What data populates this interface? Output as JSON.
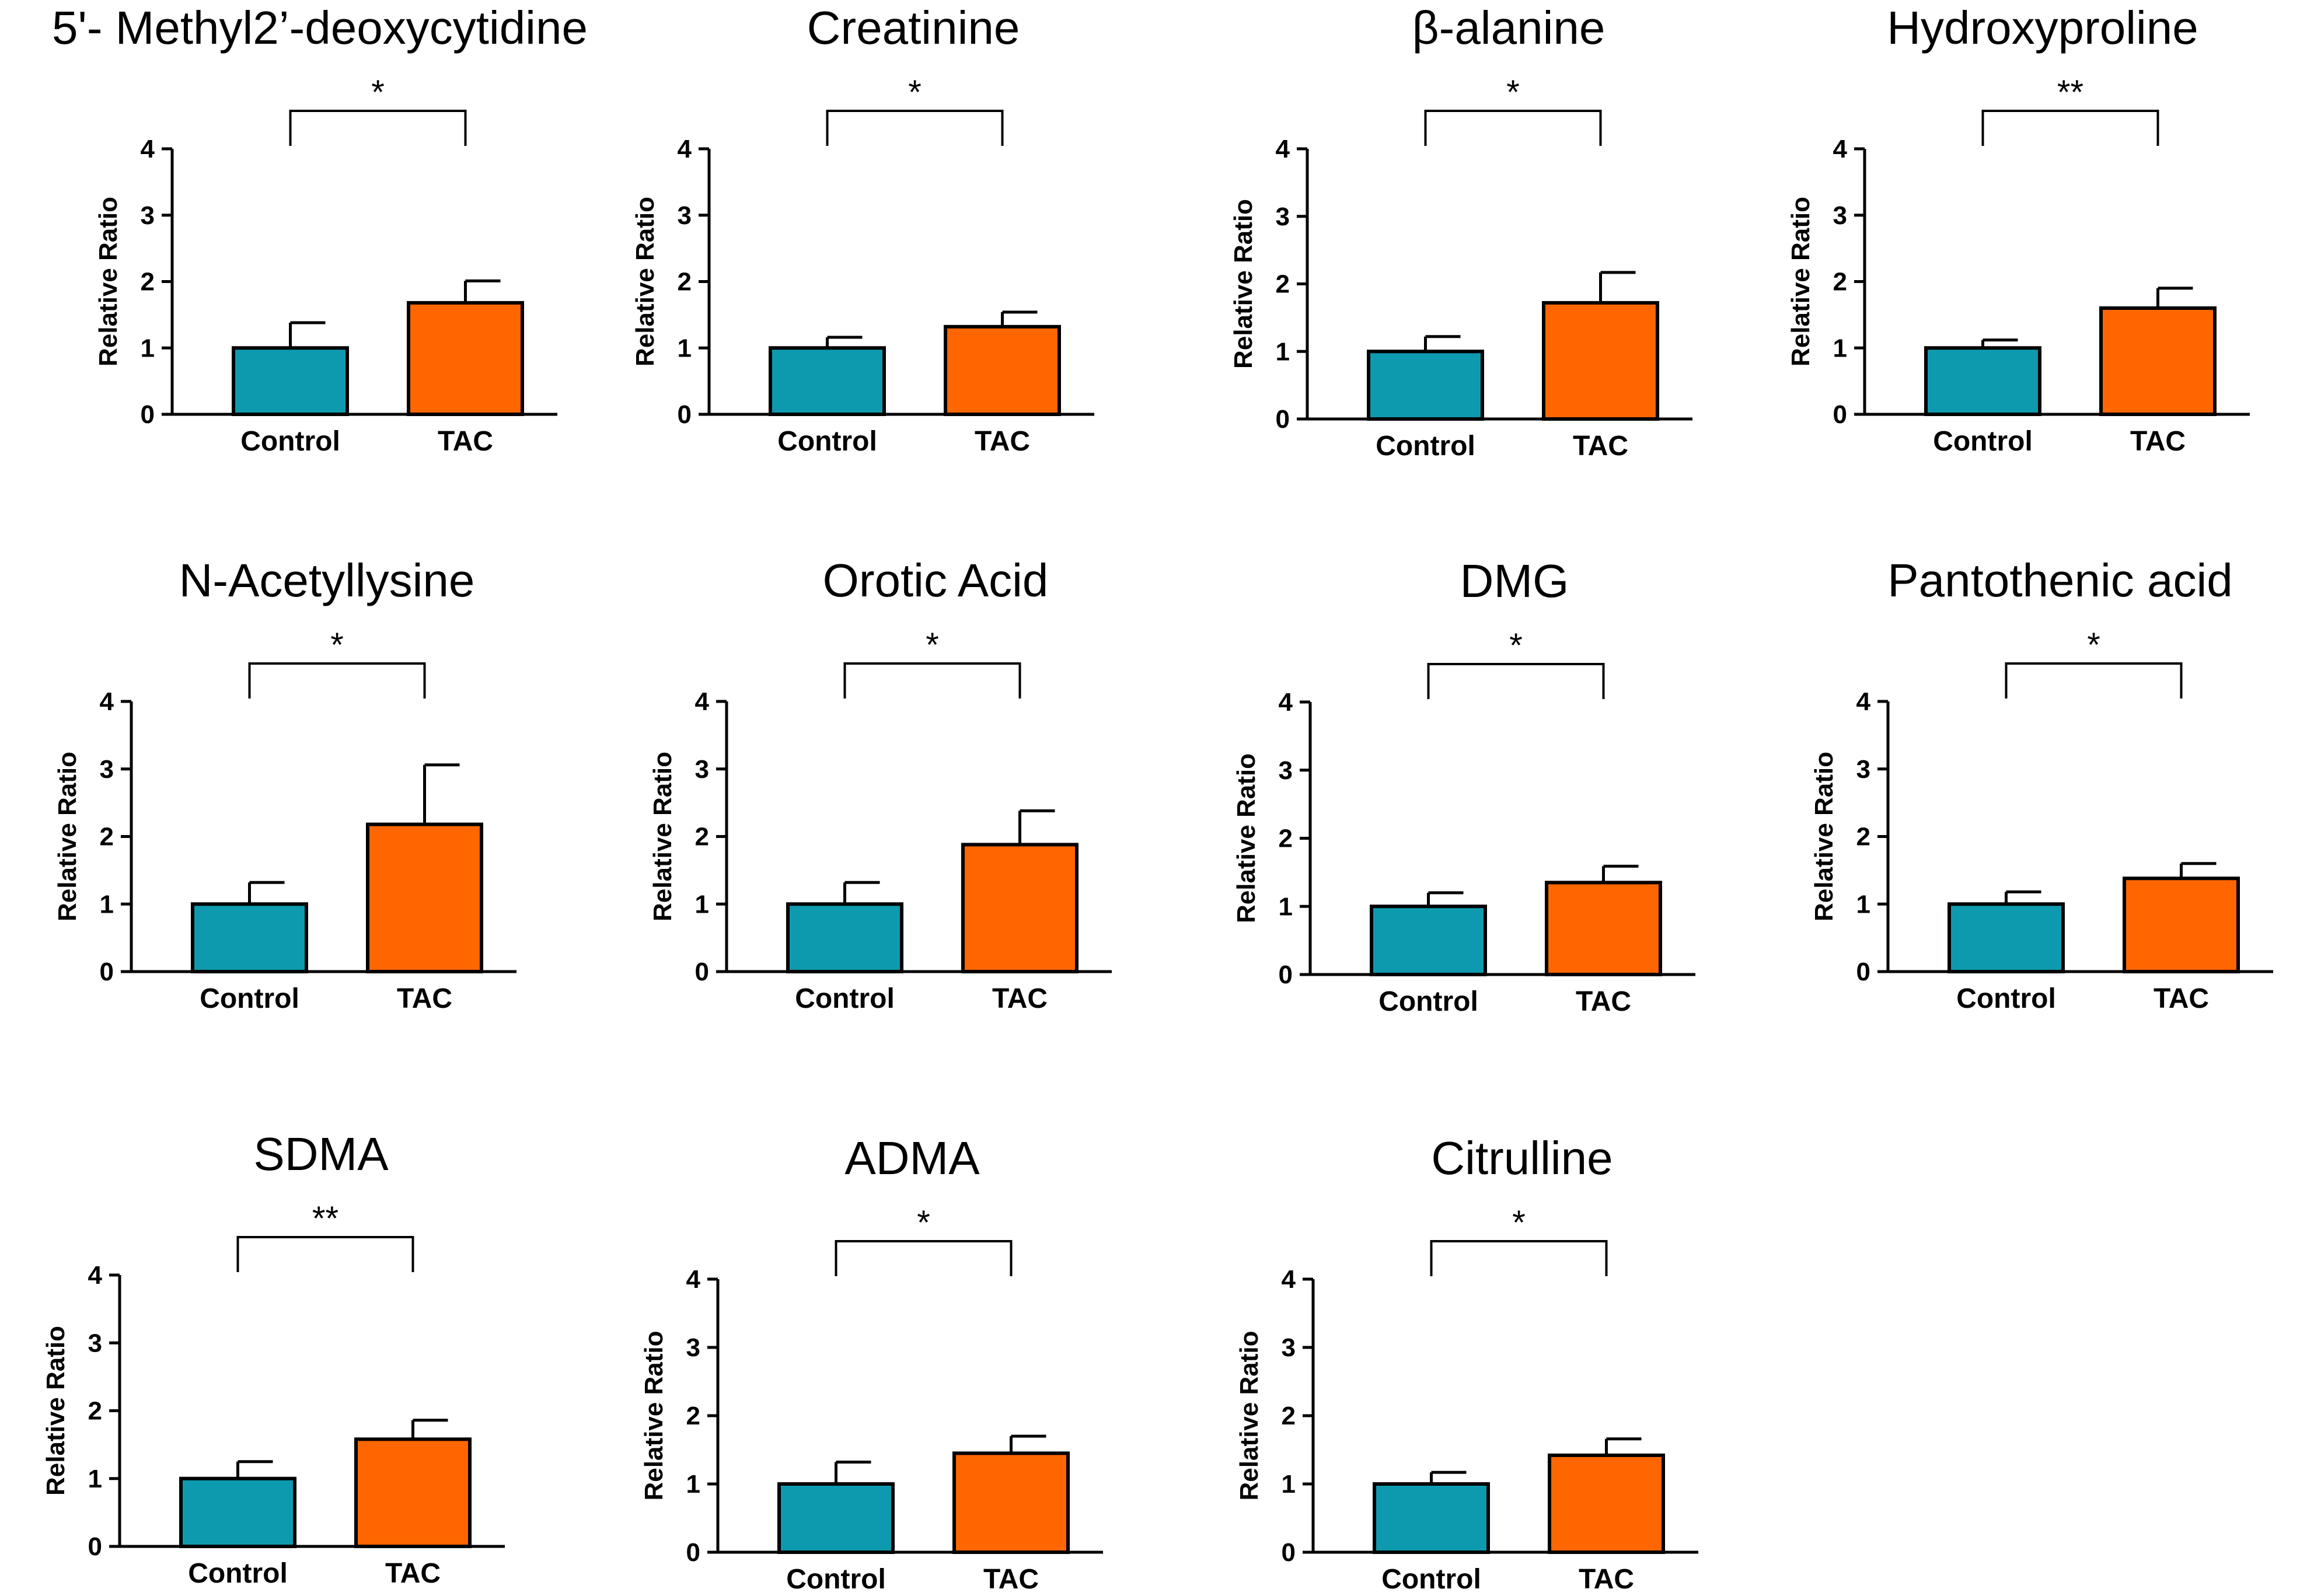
{
  "figure": {
    "ylabel": "Relative Ratio",
    "groups": [
      "Control",
      "TAC"
    ],
    "colors": {
      "Control": "#0E9AAE",
      "TAC": "#FF6600",
      "axis": "#000000"
    }
  },
  "chart_data": [
    {
      "type": "bar",
      "title": "5'- Methyl2’-deoxycytidine",
      "categories": [
        "Control",
        "TAC"
      ],
      "values": [
        1.0,
        1.68
      ],
      "errors": [
        0.38,
        0.33
      ],
      "significance": "*",
      "ylabel": "Relative Ratio",
      "ylim": [
        0,
        4
      ],
      "yticks": [
        0,
        1,
        2,
        3,
        4
      ]
    },
    {
      "type": "bar",
      "title": "Creatinine",
      "categories": [
        "Control",
        "TAC"
      ],
      "values": [
        1.0,
        1.32
      ],
      "errors": [
        0.16,
        0.22
      ],
      "significance": "*",
      "ylabel": "Relative Ratio",
      "ylim": [
        0,
        4
      ],
      "yticks": [
        0,
        1,
        2,
        3,
        4
      ]
    },
    {
      "type": "bar",
      "title": "β-alanine",
      "categories": [
        "Control",
        "TAC"
      ],
      "values": [
        1.0,
        1.72
      ],
      "errors": [
        0.22,
        0.45
      ],
      "significance": "*",
      "ylabel": "Relative Ratio",
      "ylim": [
        0,
        4
      ],
      "yticks": [
        0,
        1,
        2,
        3,
        4
      ]
    },
    {
      "type": "bar",
      "title": "Hydroxyproline",
      "categories": [
        "Control",
        "TAC"
      ],
      "values": [
        1.0,
        1.6
      ],
      "errors": [
        0.12,
        0.3
      ],
      "significance": "**",
      "ylabel": "Relative Ratio",
      "ylim": [
        0,
        4
      ],
      "yticks": [
        0,
        1,
        2,
        3,
        4
      ]
    },
    {
      "type": "bar",
      "title": "N-Acetyllysine",
      "categories": [
        "Control",
        "TAC"
      ],
      "values": [
        1.0,
        2.18
      ],
      "errors": [
        0.32,
        0.88
      ],
      "significance": "*",
      "ylabel": "Relative Ratio",
      "ylim": [
        0,
        4
      ],
      "yticks": [
        0,
        1,
        2,
        3,
        4
      ]
    },
    {
      "type": "bar",
      "title": "Orotic Acid",
      "categories": [
        "Control",
        "TAC"
      ],
      "values": [
        1.0,
        1.88
      ],
      "errors": [
        0.32,
        0.5
      ],
      "significance": "*",
      "ylabel": "Relative Ratio",
      "ylim": [
        0,
        4
      ],
      "yticks": [
        0,
        1,
        2,
        3,
        4
      ]
    },
    {
      "type": "bar",
      "title": "DMG",
      "categories": [
        "Control",
        "TAC"
      ],
      "values": [
        1.0,
        1.35
      ],
      "errors": [
        0.2,
        0.24
      ],
      "significance": "*",
      "ylabel": "Relative Ratio",
      "ylim": [
        0,
        4
      ],
      "yticks": [
        0,
        1,
        2,
        3,
        4
      ]
    },
    {
      "type": "bar",
      "title": "Pantothenic acid",
      "categories": [
        "Control",
        "TAC"
      ],
      "values": [
        1.0,
        1.38
      ],
      "errors": [
        0.18,
        0.22
      ],
      "significance": "*",
      "ylabel": "Relative Ratio",
      "ylim": [
        0,
        4
      ],
      "yticks": [
        0,
        1,
        2,
        3,
        4
      ]
    },
    {
      "type": "bar",
      "title": "SDMA",
      "categories": [
        "Control",
        "TAC"
      ],
      "values": [
        1.0,
        1.58
      ],
      "errors": [
        0.25,
        0.28
      ],
      "significance": "**",
      "ylabel": "Relative Ratio",
      "ylim": [
        0,
        4
      ],
      "yticks": [
        0,
        1,
        2,
        3,
        4
      ]
    },
    {
      "type": "bar",
      "title": "ADMA",
      "categories": [
        "Control",
        "TAC"
      ],
      "values": [
        1.0,
        1.45
      ],
      "errors": [
        0.32,
        0.25
      ],
      "significance": "*",
      "ylabel": "Relative Ratio",
      "ylim": [
        0,
        4
      ],
      "yticks": [
        0,
        1,
        2,
        3,
        4
      ]
    },
    {
      "type": "bar",
      "title": "Citrulline",
      "categories": [
        "Control",
        "TAC"
      ],
      "values": [
        1.0,
        1.42
      ],
      "errors": [
        0.17,
        0.24
      ],
      "significance": "*",
      "ylabel": "Relative Ratio",
      "ylim": [
        0,
        4
      ],
      "yticks": [
        0,
        1,
        2,
        3,
        4
      ]
    }
  ]
}
